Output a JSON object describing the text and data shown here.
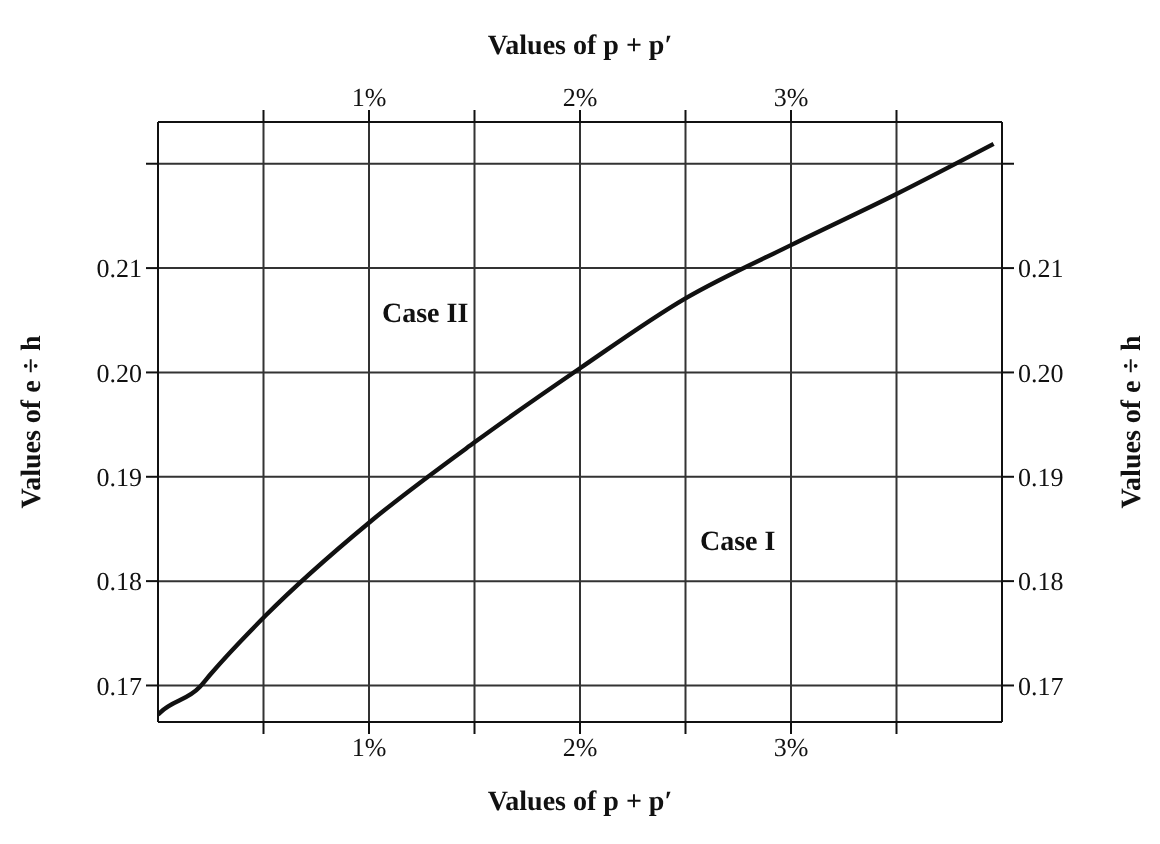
{
  "chart_data": {
    "type": "line",
    "xlabel": "Values of p + p′",
    "x2label": "Values of p + p′",
    "ylabel": "Values of e ÷ h",
    "y2label": "Values of e ÷ h",
    "annotations": [
      "Case II",
      "Case I"
    ],
    "x": [
      0,
      0.01,
      0.2,
      0.25,
      0.51,
      1.0,
      1.5,
      2.0,
      2.5,
      3.0,
      3.5,
      3.96
    ],
    "series": [
      {
        "color": "#111111",
        "values": [
          0.1672,
          0.1674,
          0.1699,
          0.1711,
          0.1767,
          0.1856,
          0.1933,
          0.2004,
          0.2071,
          0.2122,
          0.2171,
          0.2219
        ]
      }
    ],
    "xlim": [
      0,
      4
    ],
    "xticks": [
      {
        "value": 0.5,
        "label": null
      },
      {
        "value": 1,
        "label": "1%"
      },
      {
        "value": 1.5,
        "label": null
      },
      {
        "value": 2,
        "label": "2%"
      },
      {
        "value": 2.5,
        "label": null
      },
      {
        "value": 3,
        "label": "3%"
      },
      {
        "value": 3.5,
        "label": null
      }
    ],
    "x2lim": [
      0,
      4
    ],
    "x2ticks": [
      {
        "value": 0.5,
        "label": null
      },
      {
        "value": 1,
        "label": "1%"
      },
      {
        "value": 1.5,
        "label": null
      },
      {
        "value": 2,
        "label": "2%"
      },
      {
        "value": 2.5,
        "label": null
      },
      {
        "value": 3,
        "label": "3%"
      },
      {
        "value": 3.5,
        "label": null
      }
    ],
    "ylim": [
      0.1665,
      0.224
    ],
    "yticks": [
      0.17,
      0.18,
      0.19,
      {
        "value": 0.2,
        "label": "0.20"
      },
      0.21,
      {
        "value": 0.22,
        "label": null
      }
    ],
    "y2lim": [
      0.1665,
      0.224
    ],
    "y2ticks": [
      0.17,
      0.18,
      0.19,
      {
        "value": 0.2,
        "label": "0.20"
      },
      0.21,
      {
        "value": 0.22,
        "label": null
      }
    ],
    "grid": true,
    "legend": false,
    "marker": "none",
    "line_style": "solid"
  }
}
